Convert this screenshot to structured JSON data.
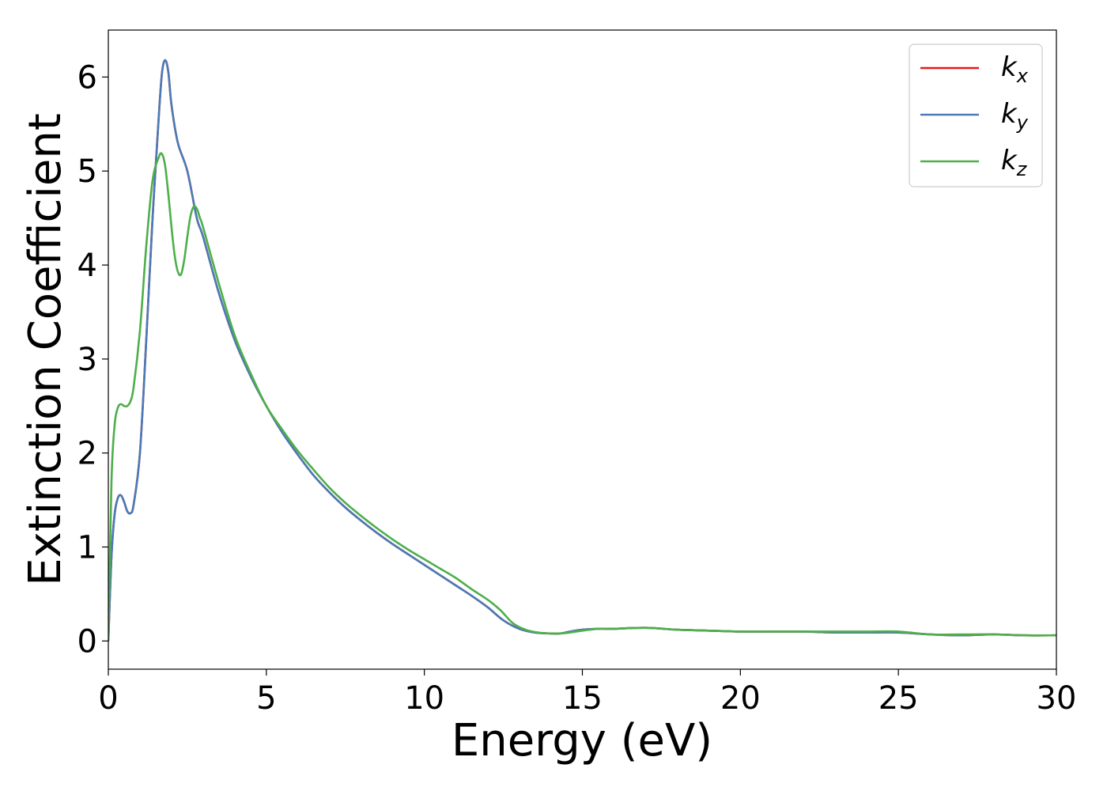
{
  "chart_data": {
    "type": "line",
    "title": "",
    "xlabel": "Energy (eV)",
    "ylabel": "Extinction Coefficient",
    "xlim": [
      0,
      30
    ],
    "ylim": [
      -0.3,
      6.5
    ],
    "xticks": [
      0,
      5,
      10,
      15,
      20,
      25,
      30
    ],
    "xtick_labels": [
      "0",
      "5",
      "10",
      "15",
      "20",
      "25",
      "30"
    ],
    "yticks": [
      0,
      1,
      2,
      3,
      4,
      5,
      6
    ],
    "ytick_labels": [
      "0",
      "1",
      "2",
      "3",
      "4",
      "5",
      "6"
    ],
    "grid": false,
    "legend_position": "top-right",
    "series": [
      {
        "name": "k_x",
        "legend_main": "k",
        "legend_sub": "x",
        "color": "#e41a1c",
        "x": [
          0,
          0.1,
          0.2,
          0.3,
          0.4,
          0.5,
          0.6,
          0.7,
          0.8,
          1.0,
          1.2,
          1.4,
          1.6,
          1.7,
          1.8,
          1.9,
          2.0,
          2.2,
          2.5,
          2.8,
          3.0,
          3.5,
          4.0,
          4.5,
          5.0,
          5.5,
          6.0,
          6.5,
          7.0,
          7.5,
          8.0,
          8.5,
          9.0,
          9.5,
          10.0,
          10.5,
          11.0,
          11.5,
          12.0,
          12.5,
          13.0,
          13.5,
          14.0,
          14.3,
          14.6,
          15.0,
          15.5,
          16.0,
          17.0,
          18.0,
          19.0,
          20.0,
          21.0,
          22.0,
          23.0,
          24.0,
          25.0,
          26.0,
          27.0,
          28.0,
          29.0,
          30.0
        ],
        "y": [
          0.0,
          0.9,
          1.35,
          1.52,
          1.55,
          1.48,
          1.38,
          1.36,
          1.45,
          2.0,
          3.2,
          4.5,
          5.6,
          6.05,
          6.18,
          6.05,
          5.7,
          5.3,
          5.0,
          4.5,
          4.3,
          3.7,
          3.2,
          2.82,
          2.5,
          2.22,
          1.98,
          1.76,
          1.58,
          1.42,
          1.28,
          1.15,
          1.03,
          0.92,
          0.81,
          0.7,
          0.59,
          0.48,
          0.36,
          0.22,
          0.13,
          0.09,
          0.08,
          0.08,
          0.1,
          0.12,
          0.13,
          0.13,
          0.14,
          0.12,
          0.11,
          0.1,
          0.1,
          0.1,
          0.09,
          0.09,
          0.09,
          0.07,
          0.06,
          0.07,
          0.06,
          0.06
        ]
      },
      {
        "name": "k_y",
        "legend_main": "k",
        "legend_sub": "y",
        "color": "#4a7bb7",
        "x": [
          0,
          0.1,
          0.2,
          0.3,
          0.4,
          0.5,
          0.6,
          0.7,
          0.8,
          1.0,
          1.2,
          1.4,
          1.6,
          1.7,
          1.8,
          1.9,
          2.0,
          2.2,
          2.5,
          2.8,
          3.0,
          3.5,
          4.0,
          4.5,
          5.0,
          5.5,
          6.0,
          6.5,
          7.0,
          7.5,
          8.0,
          8.5,
          9.0,
          9.5,
          10.0,
          10.5,
          11.0,
          11.5,
          12.0,
          12.5,
          13.0,
          13.5,
          14.0,
          14.3,
          14.6,
          15.0,
          15.5,
          16.0,
          17.0,
          18.0,
          19.0,
          20.0,
          21.0,
          22.0,
          23.0,
          24.0,
          25.0,
          26.0,
          27.0,
          28.0,
          29.0,
          30.0
        ],
        "y": [
          0.0,
          0.9,
          1.35,
          1.52,
          1.55,
          1.48,
          1.38,
          1.36,
          1.45,
          2.0,
          3.2,
          4.5,
          5.6,
          6.05,
          6.18,
          6.05,
          5.7,
          5.3,
          5.0,
          4.5,
          4.3,
          3.7,
          3.2,
          2.82,
          2.5,
          2.22,
          1.98,
          1.76,
          1.58,
          1.42,
          1.28,
          1.15,
          1.03,
          0.92,
          0.81,
          0.7,
          0.59,
          0.48,
          0.36,
          0.22,
          0.13,
          0.09,
          0.08,
          0.08,
          0.1,
          0.12,
          0.13,
          0.13,
          0.14,
          0.12,
          0.11,
          0.1,
          0.1,
          0.1,
          0.09,
          0.09,
          0.09,
          0.07,
          0.06,
          0.07,
          0.06,
          0.06
        ]
      },
      {
        "name": "k_z",
        "legend_main": "k",
        "legend_sub": "z",
        "color": "#4daf4a",
        "x": [
          0,
          0.1,
          0.2,
          0.3,
          0.4,
          0.5,
          0.6,
          0.7,
          0.8,
          1.0,
          1.2,
          1.4,
          1.6,
          1.7,
          1.8,
          1.9,
          2.0,
          2.1,
          2.2,
          2.3,
          2.4,
          2.5,
          2.6,
          2.7,
          2.8,
          2.9,
          3.0,
          3.5,
          4.0,
          4.5,
          5.0,
          5.5,
          6.0,
          6.5,
          7.0,
          7.5,
          8.0,
          8.5,
          9.0,
          9.5,
          10.0,
          10.5,
          11.0,
          11.5,
          12.0,
          12.4,
          12.8,
          13.2,
          13.6,
          14.0,
          14.3,
          14.6,
          15.0,
          15.5,
          16.0,
          17.0,
          18.0,
          19.0,
          20.0,
          21.0,
          22.0,
          23.0,
          24.0,
          25.0,
          26.0,
          27.0,
          28.0,
          29.0,
          30.0
        ],
        "y": [
          0.0,
          1.7,
          2.3,
          2.48,
          2.52,
          2.5,
          2.5,
          2.55,
          2.7,
          3.3,
          4.2,
          4.9,
          5.15,
          5.18,
          5.05,
          4.75,
          4.4,
          4.1,
          3.93,
          3.9,
          4.05,
          4.3,
          4.52,
          4.62,
          4.6,
          4.5,
          4.4,
          3.8,
          3.25,
          2.85,
          2.5,
          2.25,
          2.02,
          1.82,
          1.63,
          1.47,
          1.33,
          1.2,
          1.08,
          0.97,
          0.87,
          0.77,
          0.67,
          0.55,
          0.44,
          0.33,
          0.19,
          0.12,
          0.09,
          0.08,
          0.08,
          0.09,
          0.11,
          0.13,
          0.13,
          0.14,
          0.12,
          0.11,
          0.1,
          0.1,
          0.1,
          0.1,
          0.1,
          0.1,
          0.07,
          0.07,
          0.07,
          0.06,
          0.06
        ]
      }
    ]
  }
}
